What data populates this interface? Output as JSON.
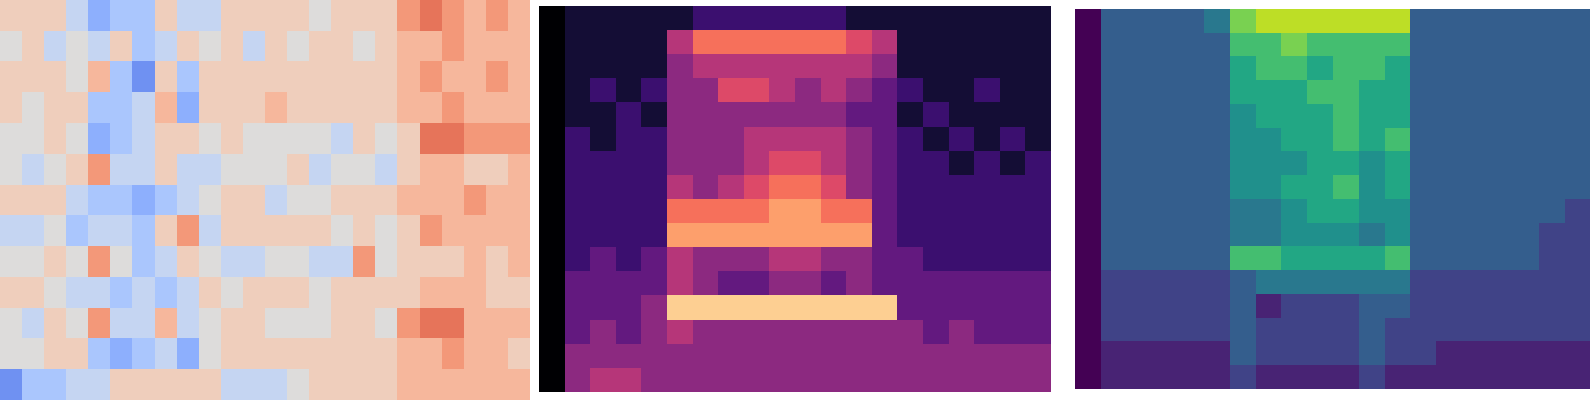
{
  "chart_data": [
    {
      "type": "heatmap",
      "color": "coolwarm",
      "tick_labels": false,
      "clim": [
        -6,
        6
      ],
      "cells": [
        [
          1,
          1,
          1,
          -1,
          -3,
          -2,
          -2,
          1,
          -1,
          -1,
          1,
          1,
          1,
          1,
          0,
          1,
          1,
          1,
          3,
          4,
          3,
          2,
          3,
          2
        ],
        [
          0,
          1,
          -1,
          0,
          -1,
          1,
          -2,
          -1,
          1,
          0,
          1,
          -1,
          1,
          0,
          1,
          1,
          0,
          1,
          2,
          2,
          3,
          2,
          2,
          2
        ],
        [
          1,
          1,
          1,
          0,
          2,
          -2,
          -4,
          1,
          -2,
          1,
          1,
          1,
          1,
          1,
          1,
          1,
          1,
          1,
          2,
          3,
          2,
          2,
          3,
          2
        ],
        [
          1,
          0,
          1,
          1,
          -2,
          -2,
          -1,
          2,
          -3,
          1,
          1,
          1,
          2,
          1,
          1,
          1,
          1,
          1,
          2,
          2,
          3,
          2,
          2,
          2
        ],
        [
          0,
          0,
          1,
          0,
          -3,
          -2,
          -1,
          1,
          1,
          0,
          1,
          0,
          0,
          0,
          0,
          -1,
          1,
          0,
          1,
          4,
          4,
          3,
          3,
          3
        ],
        [
          0,
          -1,
          0,
          1,
          3,
          -1,
          -1,
          1,
          -1,
          -1,
          0,
          0,
          0,
          1,
          -1,
          0,
          0,
          -1,
          1,
          2,
          2,
          1,
          1,
          2
        ],
        [
          1,
          1,
          1,
          -1,
          -2,
          -2,
          -3,
          -2,
          -1,
          0,
          1,
          1,
          -1,
          0,
          0,
          1,
          1,
          1,
          2,
          2,
          2,
          3,
          2,
          2
        ],
        [
          -1,
          -1,
          0,
          -2,
          -1,
          -1,
          -2,
          1,
          3,
          -1,
          1,
          1,
          1,
          1,
          1,
          0,
          1,
          0,
          1,
          3,
          2,
          2,
          2,
          2
        ],
        [
          0,
          0,
          1,
          0,
          3,
          0,
          -2,
          -1,
          1,
          0,
          -1,
          -1,
          0,
          0,
          -1,
          -1,
          3,
          0,
          1,
          1,
          1,
          2,
          1,
          2
        ],
        [
          1,
          1,
          0,
          -1,
          -1,
          -2,
          -1,
          -2,
          -1,
          1,
          0,
          1,
          1,
          1,
          0,
          1,
          1,
          1,
          1,
          2,
          2,
          2,
          1,
          1
        ],
        [
          0,
          -1,
          1,
          0,
          3,
          -1,
          -1,
          2,
          -1,
          0,
          1,
          1,
          0,
          0,
          0,
          1,
          1,
          0,
          3,
          4,
          4,
          2,
          2,
          2
        ],
        [
          0,
          0,
          1,
          1,
          -2,
          -3,
          -2,
          -1,
          -3,
          0,
          1,
          1,
          1,
          1,
          1,
          1,
          1,
          1,
          2,
          2,
          3,
          2,
          2,
          1
        ],
        [
          -4,
          -2,
          -2,
          -1,
          -1,
          1,
          1,
          1,
          1,
          1,
          -1,
          -1,
          -1,
          0,
          1,
          1,
          1,
          1,
          2,
          2,
          2,
          2,
          2,
          2
        ]
      ]
    },
    {
      "type": "heatmap",
      "color": "magma",
      "tick_labels": false,
      "clim": [
        0,
        10
      ],
      "cells": [
        [
          0,
          1,
          1,
          1,
          1,
          1,
          2,
          2,
          2,
          2,
          2,
          2,
          1,
          1,
          1,
          1,
          1,
          1,
          1,
          1
        ],
        [
          0,
          1,
          1,
          1,
          1,
          5,
          7,
          7,
          7,
          7,
          7,
          7,
          6,
          5,
          1,
          1,
          1,
          1,
          1,
          1
        ],
        [
          0,
          1,
          1,
          1,
          1,
          4,
          5,
          5,
          5,
          5,
          5,
          5,
          5,
          4,
          1,
          1,
          1,
          1,
          1,
          1
        ],
        [
          0,
          1,
          2,
          1,
          2,
          4,
          4,
          6,
          6,
          5,
          4,
          5,
          4,
          3,
          2,
          1,
          1,
          2,
          1,
          1
        ],
        [
          0,
          1,
          1,
          2,
          1,
          4,
          4,
          4,
          4,
          4,
          4,
          4,
          3,
          3,
          1,
          2,
          1,
          1,
          1,
          1
        ],
        [
          0,
          2,
          1,
          2,
          2,
          4,
          4,
          4,
          5,
          5,
          5,
          5,
          4,
          3,
          2,
          1,
          2,
          1,
          2,
          1
        ],
        [
          0,
          2,
          2,
          2,
          2,
          4,
          4,
          4,
          5,
          6,
          6,
          5,
          4,
          3,
          2,
          2,
          1,
          2,
          1,
          2
        ],
        [
          0,
          2,
          2,
          2,
          2,
          5,
          4,
          5,
          6,
          7,
          7,
          6,
          4,
          3,
          2,
          2,
          2,
          2,
          2,
          2
        ],
        [
          0,
          2,
          2,
          2,
          2,
          7,
          7,
          7,
          7,
          8,
          8,
          7,
          7,
          3,
          2,
          2,
          2,
          2,
          2,
          2
        ],
        [
          0,
          2,
          2,
          2,
          2,
          8,
          8,
          8,
          8,
          8,
          8,
          8,
          8,
          3,
          2,
          2,
          2,
          2,
          2,
          2
        ],
        [
          0,
          2,
          3,
          2,
          3,
          5,
          4,
          4,
          4,
          5,
          5,
          4,
          4,
          3,
          3,
          2,
          2,
          2,
          2,
          2
        ],
        [
          0,
          3,
          3,
          3,
          3,
          5,
          4,
          3,
          3,
          4,
          4,
          3,
          4,
          3,
          3,
          3,
          3,
          3,
          3,
          3
        ],
        [
          0,
          3,
          3,
          3,
          4,
          9,
          9,
          9,
          9,
          9,
          9,
          9,
          9,
          9,
          3,
          3,
          3,
          3,
          3,
          3
        ],
        [
          0,
          3,
          4,
          3,
          4,
          5,
          4,
          4,
          4,
          4,
          4,
          4,
          4,
          4,
          4,
          3,
          4,
          3,
          3,
          3
        ],
        [
          0,
          4,
          4,
          4,
          4,
          4,
          4,
          4,
          4,
          4,
          4,
          4,
          4,
          4,
          4,
          4,
          4,
          4,
          4,
          4
        ],
        [
          0,
          4,
          5,
          5,
          4,
          4,
          4,
          4,
          4,
          4,
          4,
          4,
          4,
          4,
          4,
          4,
          4,
          4,
          4,
          4
        ]
      ]
    },
    {
      "type": "heatmap",
      "color": "viridis",
      "tick_labels": false,
      "clim": [
        0,
        10
      ],
      "cells": [
        [
          0,
          3,
          3,
          3,
          3,
          4,
          8,
          9,
          9,
          9,
          9,
          9,
          9,
          3,
          3,
          3,
          3,
          3,
          3,
          3
        ],
        [
          0,
          3,
          3,
          3,
          3,
          3,
          7,
          7,
          8,
          7,
          7,
          7,
          7,
          3,
          3,
          3,
          3,
          3,
          3,
          3
        ],
        [
          0,
          3,
          3,
          3,
          3,
          3,
          6,
          7,
          7,
          6,
          7,
          7,
          6,
          3,
          3,
          3,
          3,
          3,
          3,
          3
        ],
        [
          0,
          3,
          3,
          3,
          3,
          3,
          6,
          6,
          6,
          7,
          7,
          6,
          6,
          3,
          3,
          3,
          3,
          3,
          3,
          3
        ],
        [
          0,
          3,
          3,
          3,
          3,
          3,
          5,
          6,
          6,
          6,
          7,
          6,
          6,
          3,
          3,
          3,
          3,
          3,
          3,
          3
        ],
        [
          0,
          3,
          3,
          3,
          3,
          3,
          5,
          5,
          6,
          6,
          7,
          6,
          7,
          3,
          3,
          3,
          3,
          3,
          3,
          3
        ],
        [
          0,
          3,
          3,
          3,
          3,
          3,
          5,
          5,
          5,
          6,
          6,
          5,
          6,
          3,
          3,
          3,
          3,
          3,
          3,
          3
        ],
        [
          0,
          3,
          3,
          3,
          3,
          3,
          5,
          5,
          6,
          6,
          7,
          5,
          6,
          3,
          3,
          3,
          3,
          3,
          3,
          3
        ],
        [
          0,
          3,
          3,
          3,
          3,
          3,
          4,
          4,
          5,
          6,
          6,
          5,
          5,
          3,
          3,
          3,
          3,
          3,
          3,
          2
        ],
        [
          0,
          3,
          3,
          3,
          3,
          3,
          4,
          4,
          5,
          5,
          5,
          4,
          5,
          3,
          3,
          3,
          3,
          3,
          2,
          2
        ],
        [
          0,
          3,
          3,
          3,
          3,
          3,
          7,
          7,
          6,
          6,
          6,
          6,
          7,
          3,
          3,
          3,
          3,
          3,
          2,
          2
        ],
        [
          0,
          2,
          2,
          2,
          2,
          2,
          3,
          4,
          4,
          4,
          4,
          4,
          4,
          2,
          2,
          2,
          2,
          2,
          2,
          2
        ],
        [
          0,
          2,
          2,
          2,
          2,
          2,
          3,
          1,
          2,
          2,
          2,
          3,
          3,
          2,
          2,
          2,
          2,
          2,
          2,
          2
        ],
        [
          0,
          2,
          2,
          2,
          2,
          2,
          3,
          2,
          2,
          2,
          2,
          3,
          2,
          2,
          2,
          2,
          2,
          2,
          2,
          2
        ],
        [
          0,
          1,
          1,
          1,
          1,
          1,
          3,
          2,
          2,
          2,
          2,
          3,
          2,
          2,
          1,
          1,
          1,
          1,
          1,
          1
        ],
        [
          0,
          1,
          1,
          1,
          1,
          1,
          2,
          1,
          1,
          1,
          1,
          2,
          1,
          1,
          1,
          1,
          1,
          1,
          1,
          1
        ]
      ]
    }
  ]
}
